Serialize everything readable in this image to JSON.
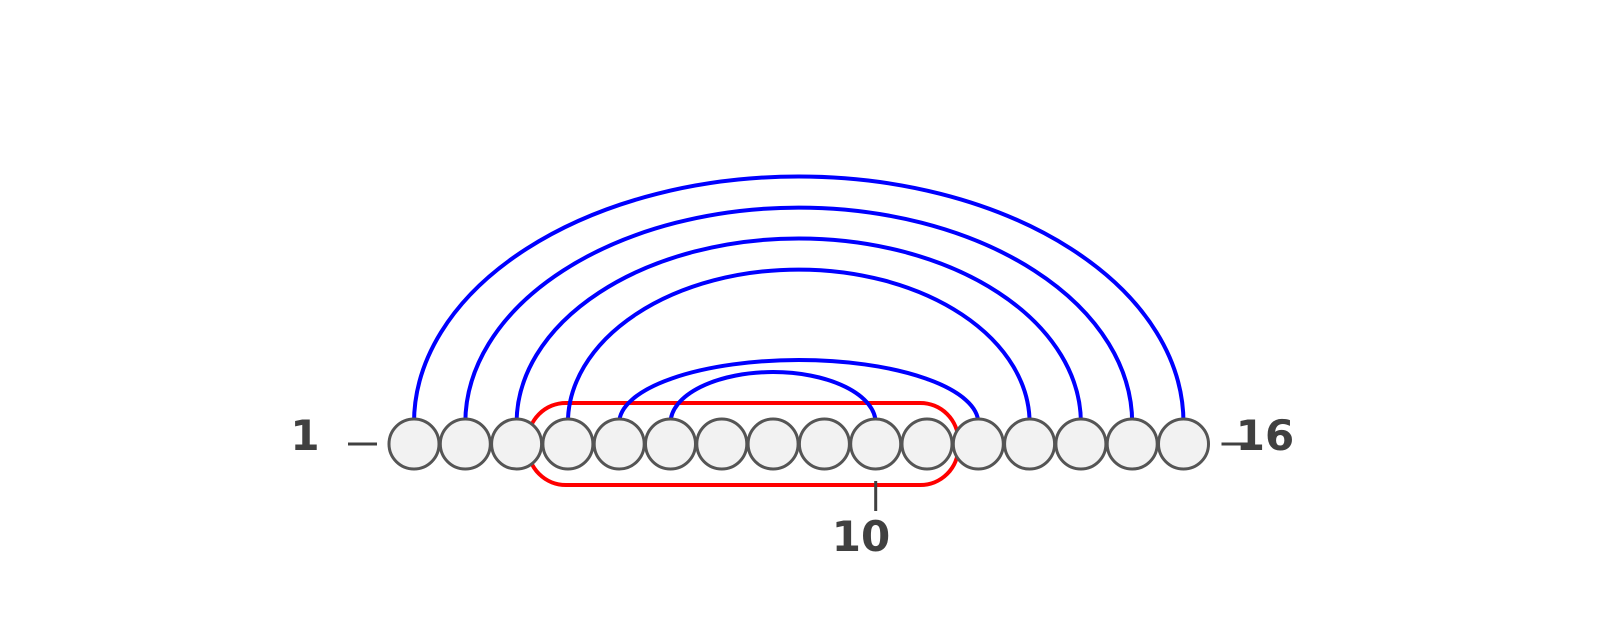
{
  "diagram": {
    "node_count": 16,
    "labels": {
      "first": "1",
      "last": "16",
      "marked": "10"
    },
    "marked_node": 10,
    "arcs": [
      {
        "from": 1,
        "to": 16
      },
      {
        "from": 2,
        "to": 15
      },
      {
        "from": 3,
        "to": 14
      },
      {
        "from": 4,
        "to": 13
      },
      {
        "from": 5,
        "to": 12
      },
      {
        "from": 6,
        "to": 10
      }
    ],
    "highlight_range": {
      "from": 4,
      "to": 12
    },
    "colors": {
      "arc": "#0000ff",
      "highlight": "#ff0000",
      "node_fill": "#f2f2f2",
      "node_stroke": "#555555",
      "label": "#404040"
    }
  }
}
